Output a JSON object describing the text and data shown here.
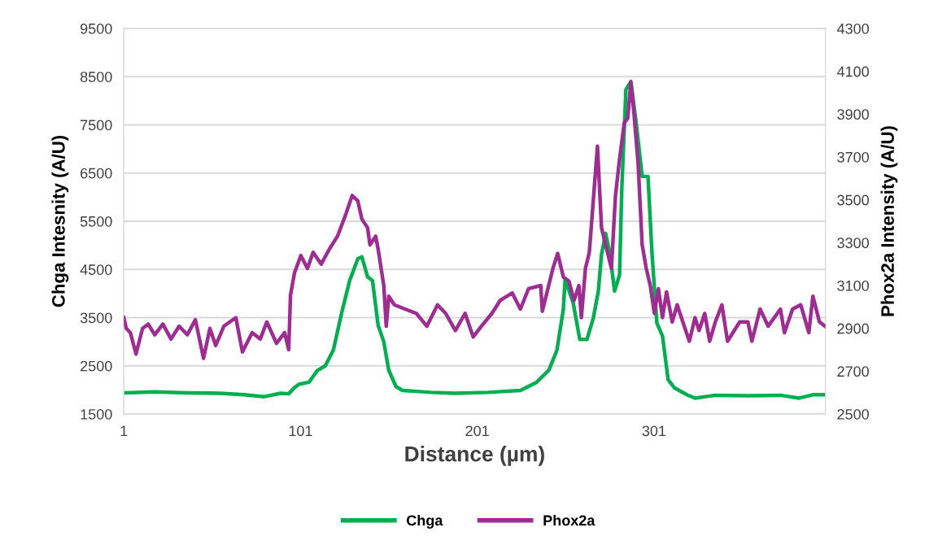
{
  "chart_data": {
    "type": "line",
    "xlabel": "Distance (µm)",
    "ylabel": "Chga Intesnity (A/U)",
    "y2label": "Phox2a Intensity (A/U)",
    "xlim": [
      1,
      398
    ],
    "xticks": [
      1,
      101,
      201,
      301
    ],
    "ylim": [
      1500,
      9500
    ],
    "yticks": [
      1500,
      2500,
      3500,
      4500,
      5500,
      6500,
      7500,
      8500,
      9500
    ],
    "y2lim": [
      2500,
      4300
    ],
    "y2ticks": [
      2500,
      2700,
      2900,
      3100,
      3300,
      3500,
      3700,
      3900,
      4100,
      4300
    ],
    "grid": "y",
    "legend": "bottom",
    "marker": "none",
    "line_style": "solid",
    "series": [
      {
        "name": "Chga",
        "color": "#00b050",
        "x": [
          1,
          18.5,
          36.9,
          55.3,
          69,
          80.5,
          89.7,
          94.3,
          97.6,
          100.3,
          105.8,
          110.4,
          115,
          119.6,
          124.2,
          128.8,
          133.4,
          135.7,
          138.9,
          141.7,
          144.9,
          148.1,
          150.9,
          155,
          158.7,
          174.8,
          188.6,
          207,
          225.4,
          234.6,
          241.5,
          246.1,
          249.7,
          250.7,
          255.3,
          259,
          263.1,
          266.7,
          269.5,
          271.3,
          273.6,
          275.9,
          278.7,
          281.5,
          282.8,
          285.1,
          287.9,
          290.7,
          294.3,
          297.6,
          299.9,
          302.6,
          305.8,
          309,
          312.7,
          319.6,
          324.2,
          335.7,
          354.1,
          372.5,
          383.1,
          390.9,
          397.8
        ],
        "values": [
          1940,
          1960,
          1940,
          1930,
          1900,
          1860,
          1930,
          1920,
          2050,
          2120,
          2160,
          2400,
          2500,
          2830,
          3590,
          4270,
          4720,
          4760,
          4350,
          4270,
          3340,
          3000,
          2410,
          2070,
          1990,
          1950,
          1930,
          1950,
          1990,
          2160,
          2410,
          2830,
          3670,
          4300,
          3800,
          3050,
          3050,
          3500,
          4050,
          4810,
          5250,
          4860,
          4050,
          4390,
          6210,
          8230,
          8400,
          7610,
          6430,
          6430,
          4810,
          3390,
          3120,
          2210,
          2040,
          1900,
          1830,
          1890,
          1880,
          1890,
          1830,
          1900,
          1900
        ]
      },
      {
        "name": "Phox2a",
        "color": "#a02b93",
        "axis": "y2",
        "x": [
          1,
          2.4,
          4.7,
          7.9,
          11.6,
          14.8,
          18.5,
          23.1,
          27.7,
          32.3,
          36.9,
          41.5,
          46.1,
          49.7,
          53,
          57.6,
          64.4,
          68.1,
          73.6,
          78.2,
          81.9,
          87.4,
          92,
          94.3,
          95.3,
          97.6,
          101.2,
          104.9,
          108.1,
          112.7,
          117.3,
          121.9,
          126.5,
          130.2,
          133.4,
          135.7,
          138.9,
          140.3,
          143.5,
          144.9,
          148.1,
          149.5,
          150.9,
          154.1,
          160.1,
          166.5,
          172.5,
          178.5,
          183.1,
          188.6,
          194.1,
          198.7,
          203.3,
          209.3,
          213.9,
          220.8,
          225.4,
          230,
          236.9,
          237.8,
          243.8,
          246.5,
          249.7,
          252.9,
          255.7,
          258.5,
          259.9,
          262.2,
          264.4,
          269,
          271.3,
          273.6,
          276.9,
          279.2,
          281.5,
          284.2,
          286.1,
          287.9,
          289.7,
          292,
          294.3,
          296.6,
          298.9,
          301.2,
          303.5,
          305.8,
          308.1,
          311.3,
          314.1,
          317.3,
          321,
          324.2,
          326.5,
          329.7,
          332.5,
          335.7,
          339.4,
          342.6,
          349.5,
          354.1,
          356.4,
          361,
          365.6,
          372.5,
          374.8,
          379.4,
          384,
          388.6,
          390.9,
          394.6,
          397.8
        ],
        "values": [
          2950,
          2900,
          2880,
          2780,
          2900,
          2920,
          2870,
          2920,
          2850,
          2910,
          2870,
          2940,
          2760,
          2900,
          2820,
          2910,
          2950,
          2790,
          2880,
          2850,
          2930,
          2830,
          2880,
          2800,
          3054,
          3160,
          3240,
          3180,
          3255,
          3200,
          3270,
          3330,
          3430,
          3520,
          3495,
          3410,
          3370,
          3290,
          3330,
          3270,
          3100,
          2910,
          3050,
          3010,
          2990,
          2970,
          2910,
          3010,
          2970,
          2890,
          2970,
          2860,
          2910,
          2970,
          3030,
          3065,
          2990,
          3085,
          3100,
          2980,
          3180,
          3250,
          3140,
          3120,
          3030,
          3100,
          2950,
          3180,
          3255,
          3750,
          3370,
          3290,
          3180,
          3520,
          3690,
          3860,
          3880,
          4050,
          3900,
          3670,
          3290,
          3180,
          3100,
          2970,
          3085,
          2950,
          3070,
          2930,
          3010,
          2930,
          2840,
          2950,
          2890,
          2970,
          2840,
          2930,
          3010,
          2840,
          2930,
          2930,
          2840,
          2990,
          2910,
          2990,
          2880,
          2990,
          3010,
          2880,
          3050,
          2930,
          2910
        ]
      }
    ]
  }
}
